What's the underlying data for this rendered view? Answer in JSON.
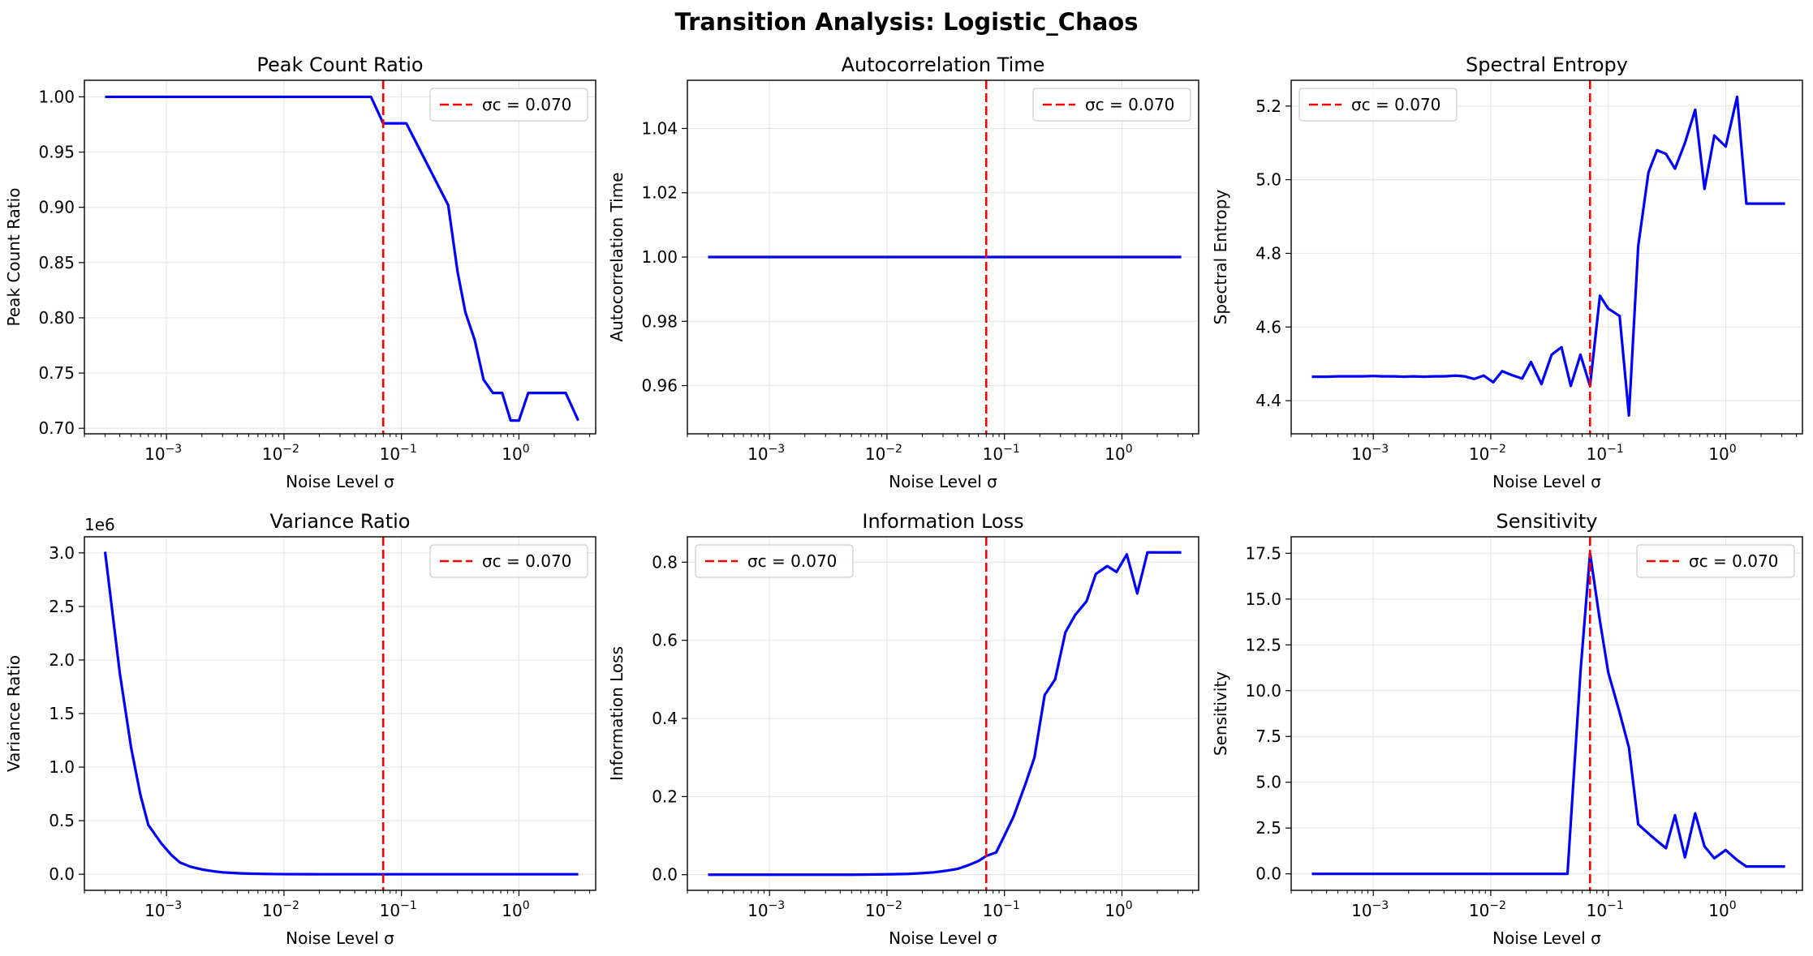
{
  "figure": {
    "title": "Transition Analysis: Logistic_Chaos",
    "colors": {
      "series": "#0000ff",
      "critical": "#ff0000",
      "grid": "#e6e6e6"
    }
  },
  "chart_data": [
    {
      "type": "line",
      "title": "Peak Count Ratio",
      "xlabel": "Noise Level σ",
      "ylabel": "Peak Count Ratio",
      "xscale": "log",
      "xlim": [
        0.0002,
        4.5
      ],
      "ylim": [
        0.695,
        1.015
      ],
      "yticks": [
        0.7,
        0.75,
        0.8,
        0.85,
        0.9,
        0.95,
        1.0
      ],
      "ytick_labels": [
        "0.70",
        "0.75",
        "0.80",
        "0.85",
        "0.90",
        "0.95",
        "1.00"
      ],
      "xticks": [
        0.001,
        0.01,
        0.1,
        1
      ],
      "xtick_labels": [
        "10",
        "10",
        "10",
        "10"
      ],
      "xtick_exps": [
        "−3",
        "−2",
        "−1",
        "0"
      ],
      "grid": true,
      "legend": {
        "label": "σc = 0.070",
        "position": "top-right"
      },
      "critical_x": 0.07,
      "series": [
        {
          "x": [
            0.0003,
            0.055,
            0.07,
            0.11,
            0.25,
            0.3,
            0.35,
            0.42,
            0.5,
            0.6,
            0.72,
            0.85,
            1.0,
            1.2,
            1.5,
            2.0,
            2.5,
            3.2
          ],
          "values": [
            1.0,
            1.0,
            0.976,
            0.976,
            0.902,
            0.842,
            0.805,
            0.78,
            0.744,
            0.732,
            0.732,
            0.707,
            0.707,
            0.732,
            0.732,
            0.732,
            0.732,
            0.707
          ]
        }
      ]
    },
    {
      "type": "line",
      "title": "Autocorrelation Time",
      "xlabel": "Noise Level σ",
      "ylabel": "Autocorrelation Time",
      "xscale": "log",
      "xlim": [
        0.0002,
        4.5
      ],
      "ylim": [
        0.945,
        1.055
      ],
      "yticks": [
        0.96,
        0.98,
        1.0,
        1.02,
        1.04
      ],
      "ytick_labels": [
        "0.96",
        "0.98",
        "1.00",
        "1.02",
        "1.04"
      ],
      "xticks": [
        0.001,
        0.01,
        0.1,
        1
      ],
      "xtick_labels": [
        "10",
        "10",
        "10",
        "10"
      ],
      "xtick_exps": [
        "−3",
        "−2",
        "−1",
        "0"
      ],
      "grid": true,
      "legend": {
        "label": "σc = 0.070",
        "position": "top-right"
      },
      "critical_x": 0.07,
      "series": [
        {
          "x": [
            0.0003,
            0.001,
            0.01,
            0.1,
            1.0,
            3.2
          ],
          "values": [
            1.0,
            1.0,
            1.0,
            1.0,
            1.0,
            1.0
          ]
        }
      ]
    },
    {
      "type": "line",
      "title": "Spectral Entropy",
      "xlabel": "Noise Level σ",
      "ylabel": "Spectral Entropy",
      "xscale": "log",
      "xlim": [
        0.0002,
        4.5
      ],
      "ylim": [
        4.31,
        5.27
      ],
      "yticks": [
        4.4,
        4.6,
        4.8,
        5.0,
        5.2
      ],
      "ytick_labels": [
        "4.4",
        "4.6",
        "4.8",
        "5.0",
        "5.2"
      ],
      "xticks": [
        0.001,
        0.01,
        0.1,
        1
      ],
      "xtick_labels": [
        "10",
        "10",
        "10",
        "10"
      ],
      "xtick_exps": [
        "−3",
        "−2",
        "−1",
        "0"
      ],
      "grid": true,
      "legend": {
        "label": "σc = 0.070",
        "position": "top-left"
      },
      "critical_x": 0.07,
      "series": [
        {
          "x": [
            0.0003,
            0.0004,
            0.0005,
            0.0006,
            0.0008,
            0.001,
            0.0012,
            0.0015,
            0.0018,
            0.0022,
            0.0027,
            0.0033,
            0.004,
            0.005,
            0.006,
            0.0072,
            0.0087,
            0.0105,
            0.0125,
            0.015,
            0.0185,
            0.022,
            0.027,
            0.033,
            0.04,
            0.048,
            0.058,
            0.07,
            0.085,
            0.1,
            0.125,
            0.15,
            0.18,
            0.22,
            0.26,
            0.31,
            0.37,
            0.45,
            0.55,
            0.66,
            0.8,
            1.0,
            1.25,
            1.5,
            1.8,
            2.2,
            2.6,
            3.2
          ],
          "values": [
            4.465,
            4.465,
            4.466,
            4.466,
            4.466,
            4.467,
            4.466,
            4.466,
            4.465,
            4.466,
            4.465,
            4.466,
            4.466,
            4.468,
            4.466,
            4.459,
            4.468,
            4.45,
            4.48,
            4.47,
            4.46,
            4.505,
            4.445,
            4.525,
            4.545,
            4.44,
            4.525,
            4.44,
            4.685,
            4.65,
            4.63,
            4.36,
            4.82,
            5.02,
            5.08,
            5.07,
            5.03,
            5.1,
            5.19,
            4.975,
            5.12,
            5.09,
            5.225,
            4.935,
            4.935,
            4.935,
            4.935,
            4.935
          ]
        }
      ]
    },
    {
      "type": "line",
      "title": "Variance Ratio",
      "xlabel": "Noise Level σ",
      "ylabel": "Variance Ratio",
      "xscale": "log",
      "xlim": [
        0.0002,
        4.5
      ],
      "ylim": [
        -0.15,
        3.15
      ],
      "y_multiplier": "1e6",
      "yticks": [
        0.0,
        0.5,
        1.0,
        1.5,
        2.0,
        2.5,
        3.0
      ],
      "ytick_labels": [
        "0.0",
        "0.5",
        "1.0",
        "1.5",
        "2.0",
        "2.5",
        "3.0"
      ],
      "xticks": [
        0.001,
        0.01,
        0.1,
        1
      ],
      "xtick_labels": [
        "10",
        "10",
        "10",
        "10"
      ],
      "xtick_exps": [
        "−3",
        "−2",
        "−1",
        "0"
      ],
      "grid": true,
      "legend": {
        "label": "σc = 0.070",
        "position": "top-right"
      },
      "critical_x": 0.07,
      "series": [
        {
          "x": [
            0.0003,
            0.0004,
            0.0005,
            0.0006,
            0.0007,
            0.0009,
            0.0011,
            0.0013,
            0.0016,
            0.002,
            0.0025,
            0.003,
            0.004,
            0.005,
            0.007,
            0.01,
            0.02,
            0.05,
            0.1,
            0.5,
            1.0,
            3.2
          ],
          "values": [
            3.01,
            1.88,
            1.18,
            0.74,
            0.46,
            0.29,
            0.18,
            0.11,
            0.07,
            0.045,
            0.028,
            0.018,
            0.01,
            0.006,
            0.003,
            0.001,
            0.0,
            0.0,
            0.0,
            0.0,
            0.0,
            0.0
          ]
        }
      ]
    },
    {
      "type": "line",
      "title": "Information Loss",
      "xlabel": "Noise Level σ",
      "ylabel": "Information Loss",
      "xscale": "log",
      "xlim": [
        0.0002,
        4.5
      ],
      "ylim": [
        -0.04,
        0.865
      ],
      "yticks": [
        0.0,
        0.2,
        0.4,
        0.6,
        0.8
      ],
      "ytick_labels": [
        "0.0",
        "0.2",
        "0.4",
        "0.6",
        "0.8"
      ],
      "xticks": [
        0.001,
        0.01,
        0.1,
        1
      ],
      "xtick_labels": [
        "10",
        "10",
        "10",
        "10"
      ],
      "xtick_exps": [
        "−3",
        "−2",
        "−1",
        "0"
      ],
      "grid": true,
      "legend": {
        "label": "σc = 0.070",
        "position": "top-left"
      },
      "critical_x": 0.07,
      "series": [
        {
          "x": [
            0.0003,
            0.001,
            0.005,
            0.01,
            0.015,
            0.02,
            0.025,
            0.03,
            0.035,
            0.04,
            0.05,
            0.06,
            0.07,
            0.085,
            0.1,
            0.12,
            0.15,
            0.18,
            0.22,
            0.27,
            0.33,
            0.4,
            0.5,
            0.6,
            0.75,
            0.9,
            1.1,
            1.35,
            1.65,
            2.0,
            2.5,
            3.2
          ],
          "values": [
            0.0,
            0.0,
            0.0,
            0.001,
            0.002,
            0.004,
            0.006,
            0.009,
            0.012,
            0.015,
            0.025,
            0.035,
            0.048,
            0.057,
            0.1,
            0.15,
            0.23,
            0.3,
            0.46,
            0.5,
            0.62,
            0.665,
            0.7,
            0.77,
            0.79,
            0.775,
            0.82,
            0.72,
            0.825,
            0.825,
            0.825,
            0.825
          ]
        }
      ]
    },
    {
      "type": "line",
      "title": "Sensitivity",
      "xlabel": "Noise Level σ",
      "ylabel": "Sensitivity",
      "xscale": "log",
      "xlim": [
        0.0002,
        4.5
      ],
      "ylim": [
        -0.9,
        18.4
      ],
      "yticks": [
        0.0,
        2.5,
        5.0,
        7.5,
        10.0,
        12.5,
        15.0,
        17.5
      ],
      "ytick_labels": [
        "0.0",
        "2.5",
        "5.0",
        "7.5",
        "10.0",
        "12.5",
        "15.0",
        "17.5"
      ],
      "xticks": [
        0.001,
        0.01,
        0.1,
        1
      ],
      "xtick_labels": [
        "10",
        "10",
        "10",
        "10"
      ],
      "xtick_exps": [
        "−3",
        "−2",
        "−1",
        "0"
      ],
      "grid": true,
      "legend": {
        "label": "σc = 0.070",
        "position": "top-right"
      },
      "critical_x": 0.07,
      "series": [
        {
          "x": [
            0.0003,
            0.001,
            0.01,
            0.04,
            0.045,
            0.058,
            0.07,
            0.085,
            0.1,
            0.125,
            0.15,
            0.18,
            0.22,
            0.26,
            0.31,
            0.37,
            0.45,
            0.55,
            0.66,
            0.8,
            1.0,
            1.25,
            1.5,
            1.8,
            2.2,
            2.6,
            3.2
          ],
          "values": [
            0.0,
            0.0,
            0.0,
            0.0,
            0.0,
            11.0,
            17.5,
            13.8,
            11.0,
            8.8,
            6.9,
            2.7,
            2.2,
            1.8,
            1.4,
            3.2,
            0.9,
            3.3,
            1.5,
            0.85,
            1.3,
            0.75,
            0.4,
            0.4,
            0.4,
            0.4,
            0.4
          ]
        }
      ]
    }
  ]
}
